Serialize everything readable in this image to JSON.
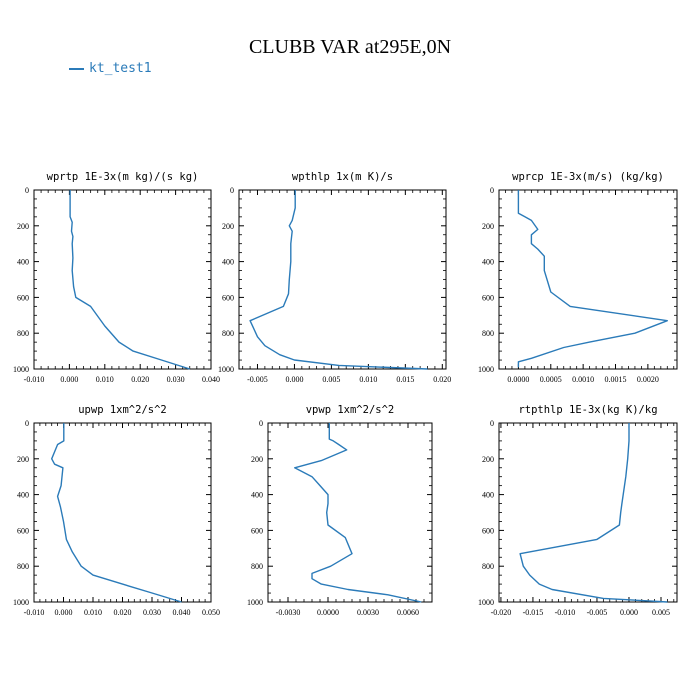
{
  "figure": {
    "title": "CLUBB VAR at295E,0N",
    "legend": [
      {
        "label": "kt_test1",
        "color": "#2b7bb9"
      }
    ]
  },
  "chart_data": [
    {
      "type": "line",
      "title": "wprtp  1E-3x(m kg)/(s kg)",
      "xlim": [
        -0.01,
        0.04
      ],
      "xticks": [
        -0.01,
        0.0,
        0.01,
        0.02,
        0.03,
        0.04
      ],
      "xtick_labels": [
        "-0.010",
        "0.000",
        "0.010",
        "0.020",
        "0.030",
        "0.040"
      ],
      "ylim": [
        1000,
        0
      ],
      "yticks": [
        0,
        200,
        400,
        600,
        800,
        1000
      ],
      "ytick_labels": [
        "0",
        "200",
        "400",
        "600",
        "800",
        "1000"
      ],
      "grid": false,
      "series": [
        {
          "name": "kt_test1",
          "color": "#2b7bb9",
          "x": [
            0.0002,
            0.0002,
            0.0008,
            0.0006,
            0.001,
            0.0008,
            0.001,
            0.0008,
            0.0012,
            0.0018,
            0.006,
            0.01,
            0.014,
            0.018,
            0.026,
            0.034
          ],
          "y": [
            0,
            150,
            180,
            230,
            260,
            300,
            380,
            450,
            540,
            600,
            650,
            760,
            850,
            900,
            950,
            1000
          ]
        }
      ]
    },
    {
      "type": "line",
      "title": "wpthlp  1x(m K)/s",
      "xlim": [
        -0.0075,
        0.0205
      ],
      "xticks": [
        -0.005,
        0.0,
        0.005,
        0.01,
        0.015,
        0.02
      ],
      "xtick_labels": [
        "-0.005",
        "0.000",
        "0.005",
        "0.010",
        "0.015",
        "0.020"
      ],
      "ylim": [
        1000,
        0
      ],
      "yticks": [
        0,
        200,
        400,
        600,
        800,
        1000
      ],
      "ytick_labels": [
        "0",
        "200",
        "400",
        "600",
        "800",
        "1000"
      ],
      "grid": false,
      "series": [
        {
          "name": "kt_test1",
          "color": "#2b7bb9",
          "x": [
            0.0001,
            0.0001,
            -0.0003,
            -0.0007,
            -0.0003,
            -0.0005,
            -0.0005,
            -0.0007,
            -0.0008,
            -0.0015,
            -0.006,
            -0.005,
            -0.004,
            -0.002,
            0.0,
            0.006,
            0.018
          ],
          "y": [
            0,
            100,
            170,
            200,
            230,
            300,
            400,
            500,
            580,
            650,
            730,
            820,
            870,
            920,
            950,
            980,
            1000
          ]
        }
      ]
    },
    {
      "type": "line",
      "title": "wprcp  1E-3x(m/s) (kg/kg)",
      "xlim": [
        -0.0003,
        0.00245
      ],
      "xticks": [
        0.0,
        0.0005,
        0.001,
        0.0015,
        0.002
      ],
      "xtick_labels": [
        "0.0000",
        "0.0005",
        "0.0010",
        "0.0015",
        "0.0020"
      ],
      "ylim": [
        1000,
        0
      ],
      "yticks": [
        0,
        200,
        400,
        600,
        800,
        1000
      ],
      "ytick_labels": [
        "0",
        "200",
        "400",
        "600",
        "800",
        "1000"
      ],
      "grid": false,
      "series": [
        {
          "name": "kt_test1",
          "color": "#2b7bb9",
          "x": [
            0.0,
            0.0,
            0.0001,
            0.0002,
            0.0003,
            0.0002,
            0.0002,
            0.0003,
            0.0004,
            0.0004,
            0.0005,
            0.0008,
            0.0023,
            0.0018,
            0.0011,
            0.0007,
            0.0002,
            0.0,
            0.0
          ],
          "y": [
            0,
            130,
            150,
            170,
            220,
            250,
            300,
            330,
            370,
            450,
            570,
            650,
            730,
            800,
            850,
            880,
            940,
            960,
            990
          ]
        }
      ]
    },
    {
      "type": "line",
      "title": "upwp  1xm^2/s^2",
      "xlim": [
        -0.01,
        0.05
      ],
      "xticks": [
        -0.01,
        0.0,
        0.01,
        0.02,
        0.03,
        0.04,
        0.05
      ],
      "xtick_labels": [
        "-0.010",
        "0.000",
        "0.010",
        "0.020",
        "0.030",
        "0.040",
        "0.050"
      ],
      "ylim": [
        1000,
        0
      ],
      "yticks": [
        0,
        200,
        400,
        600,
        800,
        1000
      ],
      "ytick_labels": [
        "0",
        "200",
        "400",
        "600",
        "800",
        "1000"
      ],
      "grid": false,
      "series": [
        {
          "name": "kt_test1",
          "color": "#2b7bb9",
          "x": [
            0.0001,
            0.0001,
            -0.002,
            -0.004,
            -0.003,
            -0.0002,
            -0.0008,
            -0.002,
            -0.001,
            0.0,
            0.001,
            0.003,
            0.006,
            0.01,
            0.02,
            0.03,
            0.04
          ],
          "y": [
            0,
            100,
            120,
            200,
            230,
            250,
            350,
            410,
            470,
            550,
            650,
            720,
            800,
            850,
            900,
            950,
            1000
          ]
        }
      ]
    },
    {
      "type": "line",
      "title": "vpwp  1xm^2/s^2",
      "xlim": [
        -0.0045,
        0.0078
      ],
      "xticks": [
        -0.003,
        0.0,
        0.003,
        0.006
      ],
      "xtick_labels": [
        "-0.0030",
        "0.0000",
        "0.0030",
        "0.0060"
      ],
      "ylim": [
        1000,
        0
      ],
      "yticks": [
        0,
        200,
        400,
        600,
        800,
        1000
      ],
      "ytick_labels": [
        "0",
        "200",
        "400",
        "600",
        "800",
        "1000"
      ],
      "grid": false,
      "series": [
        {
          "name": "kt_test1",
          "color": "#2b7bb9",
          "x": [
            0.0001,
            0.0001,
            0.0004,
            0.0008,
            0.0014,
            -0.0005,
            -0.0025,
            -0.0012,
            -0.0006,
            0.0,
            0.0,
            -0.0001,
            0.0,
            0.0013,
            0.0018,
            0.0002,
            -0.0012,
            -0.0012,
            -0.0005,
            0.0015,
            0.0045,
            0.007
          ],
          "y": [
            0,
            90,
            100,
            120,
            150,
            210,
            250,
            300,
            350,
            400,
            450,
            500,
            570,
            640,
            730,
            800,
            840,
            870,
            900,
            930,
            960,
            1000
          ]
        }
      ]
    },
    {
      "type": "line",
      "title": "rtpthlp  1E-3x(kg K)/kg",
      "xlim": [
        -0.0203,
        0.0075
      ],
      "xticks": [
        -0.02,
        -0.015,
        -0.01,
        -0.005,
        0.0,
        0.005
      ],
      "xtick_labels": [
        "-0.020",
        "-0.015",
        "-0.010",
        "-0.005",
        "0.000",
        "0.005"
      ],
      "ylim": [
        1000,
        0
      ],
      "yticks": [
        0,
        200,
        400,
        600,
        800,
        1000
      ],
      "ytick_labels": [
        "0",
        "200",
        "400",
        "600",
        "800",
        "1000"
      ],
      "grid": false,
      "series": [
        {
          "name": "kt_test1",
          "color": "#2b7bb9",
          "x": [
            0.0,
            0.0,
            -0.0002,
            -0.0005,
            -0.0007,
            -0.0009,
            -0.0011,
            -0.0013,
            -0.0015,
            -0.005,
            -0.017,
            -0.0165,
            -0.0155,
            -0.014,
            -0.012,
            -0.004,
            0.006
          ],
          "y": [
            0,
            100,
            200,
            300,
            350,
            400,
            450,
            500,
            570,
            650,
            730,
            800,
            850,
            900,
            930,
            980,
            1000
          ]
        }
      ]
    }
  ]
}
